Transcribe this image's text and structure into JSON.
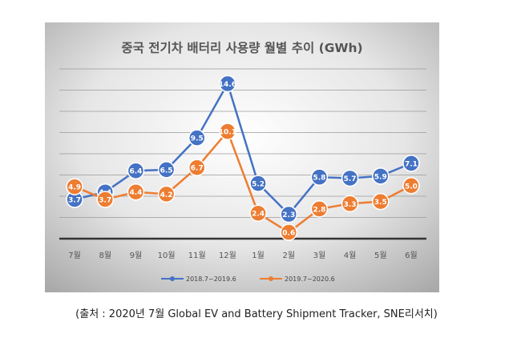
{
  "chart_data": {
    "type": "line",
    "title": "중국 전기차 배터리 사용량 월별 추이 (GWh)",
    "categories": [
      "7월",
      "8월",
      "9월",
      "10월",
      "11월",
      "12월",
      "1월",
      "2월",
      "3월",
      "4월",
      "5월",
      "6월"
    ],
    "series": [
      {
        "name": "2018.7~2019.6",
        "color": "#4472C4",
        "values": [
          3.7,
          4.4,
          6.4,
          6.5,
          9.5,
          14.6,
          5.2,
          2.3,
          5.8,
          5.7,
          5.9,
          7.1
        ]
      },
      {
        "name": "2019.7~2020.6",
        "color": "#ED7D31",
        "values": [
          4.9,
          3.7,
          4.4,
          4.2,
          6.7,
          10.1,
          2.4,
          0.6,
          2.8,
          3.3,
          3.5,
          5.0
        ]
      }
    ],
    "ylim": [
      0,
      16
    ],
    "grid": true,
    "legend": "bottom",
    "data_labels": true,
    "background": "gray-gradient"
  },
  "source": "(출처 : 2020년 7월 Global EV and Battery Shipment Tracker, SNE리서치)"
}
